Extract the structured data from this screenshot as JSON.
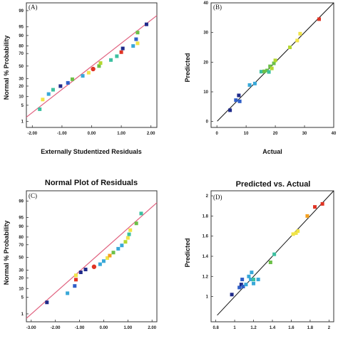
{
  "colors": {
    "fit_line_normal": "#e0607e",
    "fit_line_pred": "#111111",
    "frame": "#333333",
    "gradient": [
      "#1f2a8a",
      "#2f5fc8",
      "#38a8d8",
      "#3cc0a0",
      "#6cc048",
      "#b4d830",
      "#f0e448",
      "#f4a020",
      "#e03424"
    ]
  },
  "chart_data": [
    {
      "type": "scatter",
      "panel_label": "(A)",
      "title": "",
      "xlabel": "Externally Studentized Residuals",
      "ylabel": "Normal % Probability",
      "xlim": [
        -2.2,
        2.2
      ],
      "x_ticks": [
        "-2.00",
        "-1.00",
        "0.00",
        "1.00",
        "2.00"
      ],
      "y_ticks": [
        "1",
        "5",
        "10",
        "20",
        "30",
        "50",
        "70",
        "80",
        "90",
        "95",
        "99"
      ],
      "y_scale": "normal-probability",
      "grid": false,
      "fit_line": "normal reference line",
      "points": [
        {
          "x": -1.75,
          "y": 3.5,
          "color": "#3cc0a0"
        },
        {
          "x": -1.65,
          "y": 8,
          "color": "#f0e448"
        },
        {
          "x": -1.45,
          "y": 12,
          "color": "#38a8d8"
        },
        {
          "x": -1.3,
          "y": 16,
          "color": "#3cc0a0"
        },
        {
          "x": -1.05,
          "y": 20,
          "color": "#1f2a8a"
        },
        {
          "x": -0.8,
          "y": 24,
          "color": "#2f5fc8"
        },
        {
          "x": -0.65,
          "y": 29,
          "color": "#6cc048"
        },
        {
          "x": -0.3,
          "y": 34,
          "color": "#38a8d8"
        },
        {
          "x": -0.1,
          "y": 39,
          "color": "#f0e448"
        },
        {
          "x": 0.05,
          "y": 45,
          "color": "#e03424"
        },
        {
          "x": 0.25,
          "y": 50,
          "color": "#6cc048"
        },
        {
          "x": 0.3,
          "y": 55,
          "color": "#b4d830"
        },
        {
          "x": 0.65,
          "y": 60,
          "color": "#3cc0a0"
        },
        {
          "x": 0.85,
          "y": 66,
          "color": "#3cc0a0"
        },
        {
          "x": 1.0,
          "y": 72,
          "color": "#e03424"
        },
        {
          "x": 1.05,
          "y": 77,
          "color": "#1f2a8a"
        },
        {
          "x": 1.4,
          "y": 80,
          "color": "#38a8d8"
        },
        {
          "x": 1.55,
          "y": 83,
          "color": "#f0e448"
        },
        {
          "x": 1.5,
          "y": 87,
          "color": "#2f5fc8"
        },
        {
          "x": 1.55,
          "y": 92,
          "color": "#6cc048"
        },
        {
          "x": 1.85,
          "y": 96,
          "color": "#1f2a8a"
        }
      ]
    },
    {
      "type": "scatter",
      "panel_label": "(B)",
      "title": "",
      "xlabel": "Actual",
      "ylabel": "Predicted",
      "xlim": [
        -2,
        40
      ],
      "ylim": [
        -2,
        40
      ],
      "x_ticks": [
        "0",
        "10",
        "20",
        "30",
        "40"
      ],
      "y_ticks": [
        "0",
        "10",
        "20",
        "30",
        "40"
      ],
      "grid": false,
      "fit_line": "y = x",
      "points": [
        {
          "x": 4.5,
          "y": 3.8,
          "color": "#1f2a8a"
        },
        {
          "x": 6.5,
          "y": 7.2,
          "color": "#2f5fc8"
        },
        {
          "x": 7.5,
          "y": 8.8,
          "color": "#1f2a8a"
        },
        {
          "x": 7.8,
          "y": 6.8,
          "color": "#2f5fc8"
        },
        {
          "x": 11.2,
          "y": 12.3,
          "color": "#38a8d8"
        },
        {
          "x": 13.0,
          "y": 12.8,
          "color": "#38a8d8"
        },
        {
          "x": 15.2,
          "y": 16.8,
          "color": "#3cc0a0"
        },
        {
          "x": 16.2,
          "y": 16.9,
          "color": "#6cc048"
        },
        {
          "x": 17.2,
          "y": 17.2,
          "color": "#6cc048"
        },
        {
          "x": 17.8,
          "y": 16.7,
          "color": "#3cc0a0"
        },
        {
          "x": 18.2,
          "y": 18.6,
          "color": "#6cc048"
        },
        {
          "x": 18.8,
          "y": 17.9,
          "color": "#b4d830"
        },
        {
          "x": 19.5,
          "y": 19.6,
          "color": "#6cc048"
        },
        {
          "x": 20.0,
          "y": 20.6,
          "color": "#b4d830"
        },
        {
          "x": 25.0,
          "y": 25.0,
          "color": "#b4d830"
        },
        {
          "x": 27.5,
          "y": 27.3,
          "color": "#f0e448"
        },
        {
          "x": 28.5,
          "y": 29.6,
          "color": "#f0e448"
        },
        {
          "x": 35.0,
          "y": 34.5,
          "color": "#e03424"
        }
      ]
    },
    {
      "type": "scatter",
      "panel_label": "(C)",
      "title": "Normal Plot of Residuals",
      "xlabel": "",
      "ylabel": "Normal % Probability",
      "xlim": [
        -3.2,
        2.2
      ],
      "x_ticks": [
        "-3.00",
        "-2.00",
        "-1.00",
        "0.00",
        "1.00",
        "2.00"
      ],
      "y_ticks": [
        "1",
        "5",
        "10",
        "20",
        "30",
        "50",
        "70",
        "80",
        "90",
        "95",
        "99"
      ],
      "y_scale": "normal-probability",
      "grid": false,
      "fit_line": "normal reference line",
      "points": [
        {
          "x": -2.35,
          "y": 3.2,
          "color": "#1f2a8a"
        },
        {
          "x": -1.5,
          "y": 7,
          "color": "#38a8d8"
        },
        {
          "x": -1.2,
          "y": 12,
          "color": "#2f5fc8"
        },
        {
          "x": -1.15,
          "y": 18,
          "color": "#e03424"
        },
        {
          "x": -1.15,
          "y": 23,
          "color": "#f0e448"
        },
        {
          "x": -0.95,
          "y": 27,
          "color": "#1f2a8a"
        },
        {
          "x": -0.75,
          "y": 31,
          "color": "#1f2a8a"
        },
        {
          "x": -0.4,
          "y": 35,
          "color": "#e03424"
        },
        {
          "x": -0.15,
          "y": 39,
          "color": "#38a8d8"
        },
        {
          "x": 0.0,
          "y": 44,
          "color": "#38a8d8"
        },
        {
          "x": 0.15,
          "y": 49,
          "color": "#f0e448"
        },
        {
          "x": 0.25,
          "y": 53,
          "color": "#f4a020"
        },
        {
          "x": 0.4,
          "y": 58,
          "color": "#6cc048"
        },
        {
          "x": 0.6,
          "y": 64,
          "color": "#38a8d8"
        },
        {
          "x": 0.75,
          "y": 69,
          "color": "#38a8d8"
        },
        {
          "x": 0.9,
          "y": 74,
          "color": "#b4d830"
        },
        {
          "x": 1.0,
          "y": 79,
          "color": "#f0e448"
        },
        {
          "x": 1.05,
          "y": 83,
          "color": "#3cc0a0"
        },
        {
          "x": 1.1,
          "y": 87,
          "color": "#f0e448"
        },
        {
          "x": 1.35,
          "y": 92,
          "color": "#6cc048"
        },
        {
          "x": 1.55,
          "y": 96.5,
          "color": "#3cc0a0"
        }
      ]
    },
    {
      "type": "scatter",
      "panel_label": "(D)",
      "title": "Predicted vs. Actual",
      "xlabel": "",
      "ylabel": "Predicted",
      "xlim": [
        0.75,
        2.05
      ],
      "ylim": [
        0.75,
        2.05
      ],
      "x_ticks": [
        "0.8",
        "1",
        "1.2",
        "1.4",
        "1.6",
        "1.8",
        "2"
      ],
      "y_ticks": [
        "1",
        "1.2",
        "1.4",
        "1.6",
        "1.8",
        "2"
      ],
      "grid": false,
      "fit_line": "y = x",
      "points": [
        {
          "x": 0.97,
          "y": 1.02,
          "color": "#1f2a8a"
        },
        {
          "x": 1.05,
          "y": 1.09,
          "color": "#2f5fc8"
        },
        {
          "x": 1.07,
          "y": 1.12,
          "color": "#1f2a8a"
        },
        {
          "x": 1.09,
          "y": 1.1,
          "color": "#2f5fc8"
        },
        {
          "x": 1.08,
          "y": 1.17,
          "color": "#2f5fc8"
        },
        {
          "x": 1.12,
          "y": 1.12,
          "color": "#38a8d8"
        },
        {
          "x": 1.15,
          "y": 1.2,
          "color": "#38a8d8"
        },
        {
          "x": 1.17,
          "y": 1.17,
          "color": "#38a8d8"
        },
        {
          "x": 1.18,
          "y": 1.24,
          "color": "#38a8d8"
        },
        {
          "x": 1.2,
          "y": 1.13,
          "color": "#38a8d8"
        },
        {
          "x": 1.2,
          "y": 1.17,
          "color": "#3cc0a0"
        },
        {
          "x": 1.25,
          "y": 1.17,
          "color": "#38a8d8"
        },
        {
          "x": 1.38,
          "y": 1.34,
          "color": "#6cc048"
        },
        {
          "x": 1.42,
          "y": 1.42,
          "color": "#3cc0a0"
        },
        {
          "x": 1.62,
          "y": 1.62,
          "color": "#f0e448"
        },
        {
          "x": 1.65,
          "y": 1.63,
          "color": "#f0e448"
        },
        {
          "x": 1.67,
          "y": 1.65,
          "color": "#f0e448"
        },
        {
          "x": 1.77,
          "y": 1.8,
          "color": "#f4a020"
        },
        {
          "x": 1.85,
          "y": 1.89,
          "color": "#e03424"
        },
        {
          "x": 1.93,
          "y": 1.92,
          "color": "#e03424"
        }
      ]
    }
  ]
}
